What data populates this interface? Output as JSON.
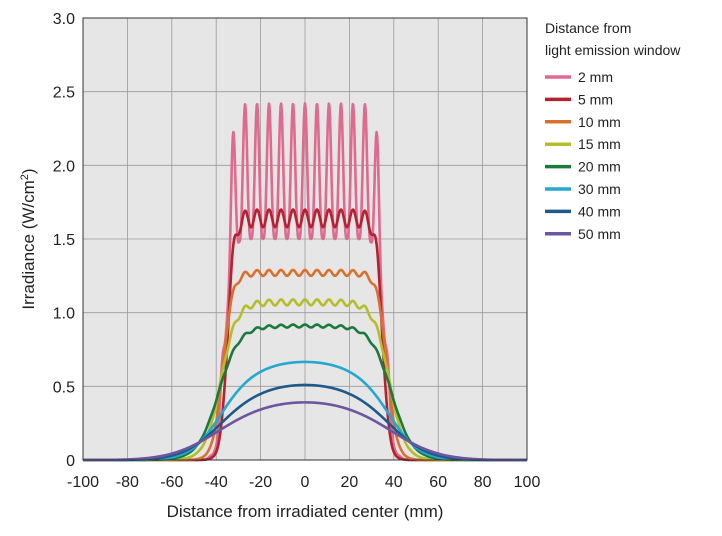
{
  "chart_data": {
    "type": "line",
    "xlabel": "Distance from irradiated center (mm)",
    "ylabel_main": "Irradiance (W/cm",
    "ylabel_sup": "2",
    "ylabel_close": ")",
    "xlim": [
      -100,
      100
    ],
    "ylim": [
      0,
      3.0
    ],
    "x_ticks": [
      -100,
      -80,
      -60,
      -40,
      -20,
      0,
      20,
      40,
      60,
      80,
      100
    ],
    "x_tick_labels": [
      "-100",
      "-80",
      "-60",
      "-40",
      "-20",
      "0",
      "20",
      "40",
      "60",
      "80",
      "100"
    ],
    "y_ticks": [
      0,
      0.5,
      1.0,
      1.5,
      2.0,
      2.5,
      3.0
    ],
    "y_tick_labels": [
      "0",
      "0.5",
      "1.0",
      "1.5",
      "2.0",
      "2.5",
      "3.0"
    ],
    "grid": true,
    "legend_position": "right",
    "legend_title_line1": "Distance from",
    "legend_title_line2": "light emission window",
    "series": [
      {
        "name": "2 mm",
        "color": "#e0698f",
        "plateau": 2.42,
        "halfwidth": 36,
        "edge": 1.5,
        "ripple": 1.2,
        "period": 5.4
      },
      {
        "name": "5 mm",
        "color": "#b2222f",
        "plateau": 1.64,
        "halfwidth": 35,
        "edge": 1.5,
        "ripple": 0.06,
        "period": 5.4
      },
      {
        "name": "10 mm",
        "color": "#d9712e",
        "plateau": 1.27,
        "halfwidth": 37,
        "edge": 2.2,
        "ripple": 0.02,
        "period": 5.4
      },
      {
        "name": "15 mm",
        "color": "#b5bd2a",
        "plateau": 1.07,
        "halfwidth": 38,
        "edge": 3.5,
        "ripple": 0.02,
        "period": 5.4
      },
      {
        "name": "20 mm",
        "color": "#1a7a3e",
        "plateau": 0.91,
        "halfwidth": 39,
        "edge": 4.6,
        "ripple": 0.01,
        "period": 5.4
      },
      {
        "name": "30 mm",
        "color": "#26a7cf",
        "plateau": 0.67,
        "halfwidth": 40,
        "edge": 7.0,
        "ripple": 0.0,
        "period": 5.4
      },
      {
        "name": "40 mm",
        "color": "#1d5a8a",
        "plateau": 0.52,
        "halfwidth": 41,
        "edge": 9.0,
        "ripple": 0.0,
        "period": 5.4
      },
      {
        "name": "50 mm",
        "color": "#6b56a0",
        "plateau": 0.41,
        "halfwidth": 43,
        "edge": 11.5,
        "ripple": 0.0,
        "period": 5.4
      }
    ]
  }
}
